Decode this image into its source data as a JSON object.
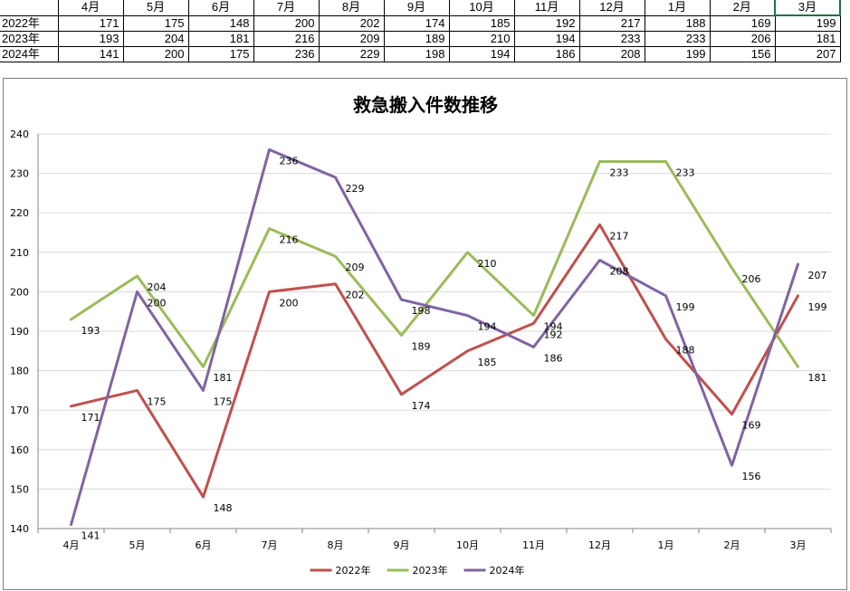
{
  "table": {
    "headers": [
      "",
      "4月",
      "5月",
      "6月",
      "7月",
      "8月",
      "9月",
      "10月",
      "11月",
      "12月",
      "1月",
      "2月",
      "3月"
    ],
    "rows": [
      {
        "label": "2022年",
        "values": [
          "171",
          "175",
          "148",
          "200",
          "202",
          "174",
          "185",
          "192",
          "217",
          "188",
          "169",
          "199"
        ]
      },
      {
        "label": "2023年",
        "values": [
          "193",
          "204",
          "181",
          "216",
          "209",
          "189",
          "210",
          "194",
          "233",
          "233",
          "206",
          "181"
        ]
      },
      {
        "label": "2024年",
        "values": [
          "141",
          "200",
          "175",
          "236",
          "229",
          "198",
          "194",
          "186",
          "208",
          "199",
          "156",
          "207"
        ]
      }
    ]
  },
  "chart_data": {
    "type": "line",
    "title": "救急搬入件数推移",
    "xlabel": "",
    "ylabel": "",
    "categories": [
      "4月",
      "5月",
      "6月",
      "7月",
      "8月",
      "9月",
      "10月",
      "11月",
      "12月",
      "1月",
      "2月",
      "3月"
    ],
    "ylim": [
      140,
      240
    ],
    "yticks": [
      140,
      150,
      160,
      170,
      180,
      190,
      200,
      210,
      220,
      230,
      240
    ],
    "grid": true,
    "legend_position": "bottom",
    "data_labels": true,
    "series": [
      {
        "name": "2022年",
        "color": "#c0504d",
        "values": [
          171,
          175,
          148,
          200,
          202,
          174,
          185,
          192,
          217,
          188,
          169,
          199
        ]
      },
      {
        "name": "2023年",
        "color": "#9bbb59",
        "values": [
          193,
          204,
          181,
          216,
          209,
          189,
          210,
          194,
          233,
          233,
          206,
          181
        ]
      },
      {
        "name": "2024年",
        "color": "#8064a2",
        "values": [
          141,
          200,
          175,
          236,
          229,
          198,
          194,
          186,
          208,
          199,
          156,
          207
        ]
      }
    ]
  }
}
